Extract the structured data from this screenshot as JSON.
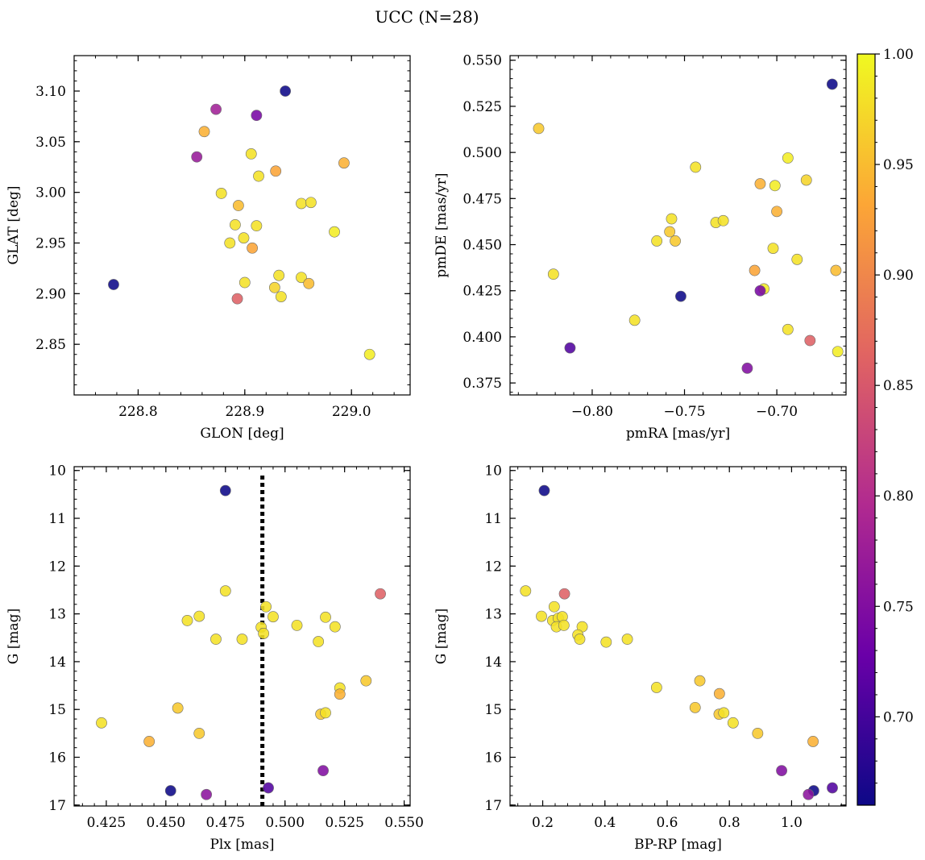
{
  "figure": {
    "title": "UCC (N=28)"
  },
  "colorbar": {
    "range": [
      0.66,
      1.0
    ],
    "ticks": [
      0.7,
      0.75,
      0.8,
      0.85,
      0.9,
      0.95,
      1.0
    ],
    "tick_labels": [
      "0.70",
      "0.75",
      "0.80",
      "0.85",
      "0.90",
      "0.95",
      "1.00"
    ],
    "colormap": "plasma",
    "colors": [
      "#0d0887",
      "#6a00a8",
      "#b12a90",
      "#e16462",
      "#fca636",
      "#f0f921"
    ]
  },
  "chart_data": [
    {
      "type": "scatter",
      "panel": "top-left",
      "xlabel": "GLON [deg]",
      "ylabel": "GLAT [deg]",
      "xlim": [
        228.74,
        229.055
      ],
      "ylim": [
        2.8,
        3.135
      ],
      "xticks": [
        228.8,
        228.9,
        229.0
      ],
      "xtick_labels": [
        "228.8",
        "228.9",
        "229.0"
      ],
      "yticks": [
        2.85,
        2.9,
        2.95,
        3.0,
        3.05,
        3.1
      ],
      "ytick_labels": [
        "2.85",
        "2.90",
        "2.95",
        "3.00",
        "3.05",
        "3.10"
      ],
      "points": [
        {
          "x": 228.777,
          "y": 2.909,
          "c": 0.66
        },
        {
          "x": 228.938,
          "y": 3.1,
          "c": 0.66
        },
        {
          "x": 228.873,
          "y": 3.082,
          "c": 0.78
        },
        {
          "x": 228.911,
          "y": 3.076,
          "c": 0.74
        },
        {
          "x": 228.855,
          "y": 3.035,
          "c": 0.77
        },
        {
          "x": 228.862,
          "y": 3.06,
          "c": 0.94
        },
        {
          "x": 228.906,
          "y": 3.038,
          "c": 0.98
        },
        {
          "x": 228.929,
          "y": 3.021,
          "c": 0.93
        },
        {
          "x": 228.913,
          "y": 3.016,
          "c": 0.98
        },
        {
          "x": 228.993,
          "y": 3.029,
          "c": 0.94
        },
        {
          "x": 228.878,
          "y": 2.999,
          "c": 0.98
        },
        {
          "x": 228.894,
          "y": 2.987,
          "c": 0.95
        },
        {
          "x": 228.953,
          "y": 2.989,
          "c": 0.98
        },
        {
          "x": 228.962,
          "y": 2.99,
          "c": 0.98
        },
        {
          "x": 228.891,
          "y": 2.968,
          "c": 0.98
        },
        {
          "x": 228.911,
          "y": 2.967,
          "c": 0.98
        },
        {
          "x": 228.899,
          "y": 2.955,
          "c": 0.98
        },
        {
          "x": 228.886,
          "y": 2.95,
          "c": 0.98
        },
        {
          "x": 228.907,
          "y": 2.945,
          "c": 0.93
        },
        {
          "x": 228.984,
          "y": 2.961,
          "c": 0.99
        },
        {
          "x": 228.9,
          "y": 2.911,
          "c": 0.98
        },
        {
          "x": 228.932,
          "y": 2.918,
          "c": 0.98
        },
        {
          "x": 228.953,
          "y": 2.916,
          "c": 0.98
        },
        {
          "x": 228.96,
          "y": 2.91,
          "c": 0.95
        },
        {
          "x": 228.928,
          "y": 2.906,
          "c": 0.97
        },
        {
          "x": 228.934,
          "y": 2.897,
          "c": 0.98
        },
        {
          "x": 228.893,
          "y": 2.895,
          "c": 0.86
        },
        {
          "x": 229.017,
          "y": 2.84,
          "c": 0.99
        }
      ]
    },
    {
      "type": "scatter",
      "panel": "top-right",
      "xlabel": "pmRA [mas/yr]",
      "ylabel": "pmDE [mas/yr]",
      "xlim": [
        -0.8445,
        -0.6625
      ],
      "ylim": [
        0.3685,
        0.5525
      ],
      "xticks": [
        -0.8,
        -0.75,
        -0.7
      ],
      "xtick_labels": [
        "−0.80",
        "−0.75",
        "−0.70"
      ],
      "yticks": [
        0.375,
        0.4,
        0.425,
        0.45,
        0.475,
        0.5,
        0.525,
        0.55
      ],
      "ytick_labels": [
        "0.375",
        "0.400",
        "0.425",
        "0.450",
        "0.475",
        "0.500",
        "0.525",
        "0.550"
      ],
      "points": [
        {
          "x": -0.67,
          "y": 0.537,
          "c": 0.66
        },
        {
          "x": -0.829,
          "y": 0.513,
          "c": 0.96
        },
        {
          "x": -0.744,
          "y": 0.492,
          "c": 0.98
        },
        {
          "x": -0.694,
          "y": 0.497,
          "c": 0.99
        },
        {
          "x": -0.709,
          "y": 0.483,
          "c": 0.94
        },
        {
          "x": -0.701,
          "y": 0.482,
          "c": 0.99
        },
        {
          "x": -0.684,
          "y": 0.485,
          "c": 0.97
        },
        {
          "x": -0.7,
          "y": 0.468,
          "c": 0.94
        },
        {
          "x": -0.757,
          "y": 0.464,
          "c": 0.98
        },
        {
          "x": -0.733,
          "y": 0.462,
          "c": 0.98
        },
        {
          "x": -0.729,
          "y": 0.463,
          "c": 0.98
        },
        {
          "x": -0.758,
          "y": 0.457,
          "c": 0.96
        },
        {
          "x": -0.765,
          "y": 0.452,
          "c": 0.98
        },
        {
          "x": -0.755,
          "y": 0.452,
          "c": 0.96
        },
        {
          "x": -0.702,
          "y": 0.448,
          "c": 0.98
        },
        {
          "x": -0.689,
          "y": 0.442,
          "c": 0.98
        },
        {
          "x": -0.712,
          "y": 0.436,
          "c": 0.93
        },
        {
          "x": -0.668,
          "y": 0.436,
          "c": 0.95
        },
        {
          "x": -0.821,
          "y": 0.434,
          "c": 0.98
        },
        {
          "x": -0.707,
          "y": 0.426,
          "c": 0.99
        },
        {
          "x": -0.709,
          "y": 0.425,
          "c": 0.74
        },
        {
          "x": -0.752,
          "y": 0.422,
          "c": 0.66
        },
        {
          "x": -0.777,
          "y": 0.409,
          "c": 0.98
        },
        {
          "x": -0.694,
          "y": 0.404,
          "c": 0.98
        },
        {
          "x": -0.682,
          "y": 0.398,
          "c": 0.86
        },
        {
          "x": -0.812,
          "y": 0.394,
          "c": 0.71
        },
        {
          "x": -0.667,
          "y": 0.392,
          "c": 0.99
        },
        {
          "x": -0.716,
          "y": 0.383,
          "c": 0.75
        }
      ]
    },
    {
      "type": "scatter",
      "panel": "bottom-left",
      "xlabel": "Plx [mas]",
      "ylabel": "G [mag]",
      "xlim": [
        0.4115,
        0.5525
      ],
      "ylim": [
        17.02,
        9.92
      ],
      "y_inverted": true,
      "xticks": [
        0.425,
        0.45,
        0.475,
        0.5,
        0.525,
        0.55
      ],
      "xtick_labels": [
        "0.425",
        "0.450",
        "0.475",
        "0.500",
        "0.525",
        "0.550"
      ],
      "yticks": [
        10,
        11,
        12,
        13,
        14,
        15,
        16,
        17
      ],
      "ytick_labels": [
        "10",
        "11",
        "12",
        "13",
        "14",
        "15",
        "16",
        "17"
      ],
      "vline": {
        "x": 0.4905,
        "style": "dotted"
      },
      "points": [
        {
          "x": 0.475,
          "y": 10.42,
          "c": 0.66
        },
        {
          "x": 0.475,
          "y": 12.52,
          "c": 0.98
        },
        {
          "x": 0.54,
          "y": 12.58,
          "c": 0.86
        },
        {
          "x": 0.492,
          "y": 12.85,
          "c": 0.98
        },
        {
          "x": 0.464,
          "y": 13.05,
          "c": 0.98
        },
        {
          "x": 0.459,
          "y": 13.14,
          "c": 0.98
        },
        {
          "x": 0.495,
          "y": 13.06,
          "c": 0.98
        },
        {
          "x": 0.517,
          "y": 13.07,
          "c": 0.98
        },
        {
          "x": 0.49,
          "y": 13.28,
          "c": 0.98
        },
        {
          "x": 0.505,
          "y": 13.24,
          "c": 0.98
        },
        {
          "x": 0.521,
          "y": 13.27,
          "c": 0.98
        },
        {
          "x": 0.491,
          "y": 13.41,
          "c": 0.98
        },
        {
          "x": 0.471,
          "y": 13.53,
          "c": 0.98
        },
        {
          "x": 0.482,
          "y": 13.53,
          "c": 0.98
        },
        {
          "x": 0.514,
          "y": 13.58,
          "c": 0.98
        },
        {
          "x": 0.534,
          "y": 14.4,
          "c": 0.96
        },
        {
          "x": 0.523,
          "y": 14.55,
          "c": 0.98
        },
        {
          "x": 0.523,
          "y": 14.68,
          "c": 0.94
        },
        {
          "x": 0.455,
          "y": 14.97,
          "c": 0.96
        },
        {
          "x": 0.515,
          "y": 15.1,
          "c": 0.96
        },
        {
          "x": 0.517,
          "y": 15.07,
          "c": 0.98
        },
        {
          "x": 0.423,
          "y": 15.28,
          "c": 0.98
        },
        {
          "x": 0.464,
          "y": 15.5,
          "c": 0.96
        },
        {
          "x": 0.443,
          "y": 15.67,
          "c": 0.94
        },
        {
          "x": 0.516,
          "y": 16.28,
          "c": 0.75
        },
        {
          "x": 0.452,
          "y": 16.7,
          "c": 0.66
        },
        {
          "x": 0.493,
          "y": 16.64,
          "c": 0.71
        },
        {
          "x": 0.467,
          "y": 16.78,
          "c": 0.76
        }
      ]
    },
    {
      "type": "scatter",
      "panel": "bottom-right",
      "xlabel": "BP-RP [mag]",
      "ylabel": "G [mag]",
      "xlim": [
        0.095,
        1.175
      ],
      "ylim": [
        17.02,
        9.92
      ],
      "y_inverted": true,
      "xticks": [
        0.2,
        0.4,
        0.6,
        0.8,
        1.0
      ],
      "xtick_labels": [
        "0.2",
        "0.4",
        "0.6",
        "0.8",
        "1.0"
      ],
      "yticks": [
        10,
        11,
        12,
        13,
        14,
        15,
        16,
        17
      ],
      "ytick_labels": [
        "10",
        "11",
        "12",
        "13",
        "14",
        "15",
        "16",
        "17"
      ],
      "points": [
        {
          "x": 0.205,
          "y": 10.42,
          "c": 0.66
        },
        {
          "x": 0.145,
          "y": 12.52,
          "c": 0.98
        },
        {
          "x": 0.27,
          "y": 12.58,
          "c": 0.86
        },
        {
          "x": 0.237,
          "y": 12.85,
          "c": 0.98
        },
        {
          "x": 0.196,
          "y": 13.05,
          "c": 0.98
        },
        {
          "x": 0.232,
          "y": 13.14,
          "c": 0.98
        },
        {
          "x": 0.25,
          "y": 13.09,
          "c": 0.98
        },
        {
          "x": 0.263,
          "y": 13.06,
          "c": 0.98
        },
        {
          "x": 0.244,
          "y": 13.27,
          "c": 0.98
        },
        {
          "x": 0.268,
          "y": 13.24,
          "c": 0.98
        },
        {
          "x": 0.327,
          "y": 13.27,
          "c": 0.98
        },
        {
          "x": 0.313,
          "y": 13.44,
          "c": 0.98
        },
        {
          "x": 0.319,
          "y": 13.53,
          "c": 0.98
        },
        {
          "x": 0.404,
          "y": 13.59,
          "c": 0.98
        },
        {
          "x": 0.472,
          "y": 13.53,
          "c": 0.98
        },
        {
          "x": 0.566,
          "y": 14.54,
          "c": 0.98
        },
        {
          "x": 0.705,
          "y": 14.4,
          "c": 0.96
        },
        {
          "x": 0.768,
          "y": 14.67,
          "c": 0.94
        },
        {
          "x": 0.69,
          "y": 14.96,
          "c": 0.96
        },
        {
          "x": 0.767,
          "y": 15.1,
          "c": 0.96
        },
        {
          "x": 0.782,
          "y": 15.07,
          "c": 0.98
        },
        {
          "x": 0.812,
          "y": 15.28,
          "c": 0.98
        },
        {
          "x": 0.891,
          "y": 15.5,
          "c": 0.96
        },
        {
          "x": 1.069,
          "y": 15.67,
          "c": 0.94
        },
        {
          "x": 0.968,
          "y": 16.28,
          "c": 0.75
        },
        {
          "x": 1.071,
          "y": 16.7,
          "c": 0.66
        },
        {
          "x": 1.131,
          "y": 16.64,
          "c": 0.71
        },
        {
          "x": 1.054,
          "y": 16.78,
          "c": 0.76
        }
      ]
    }
  ]
}
